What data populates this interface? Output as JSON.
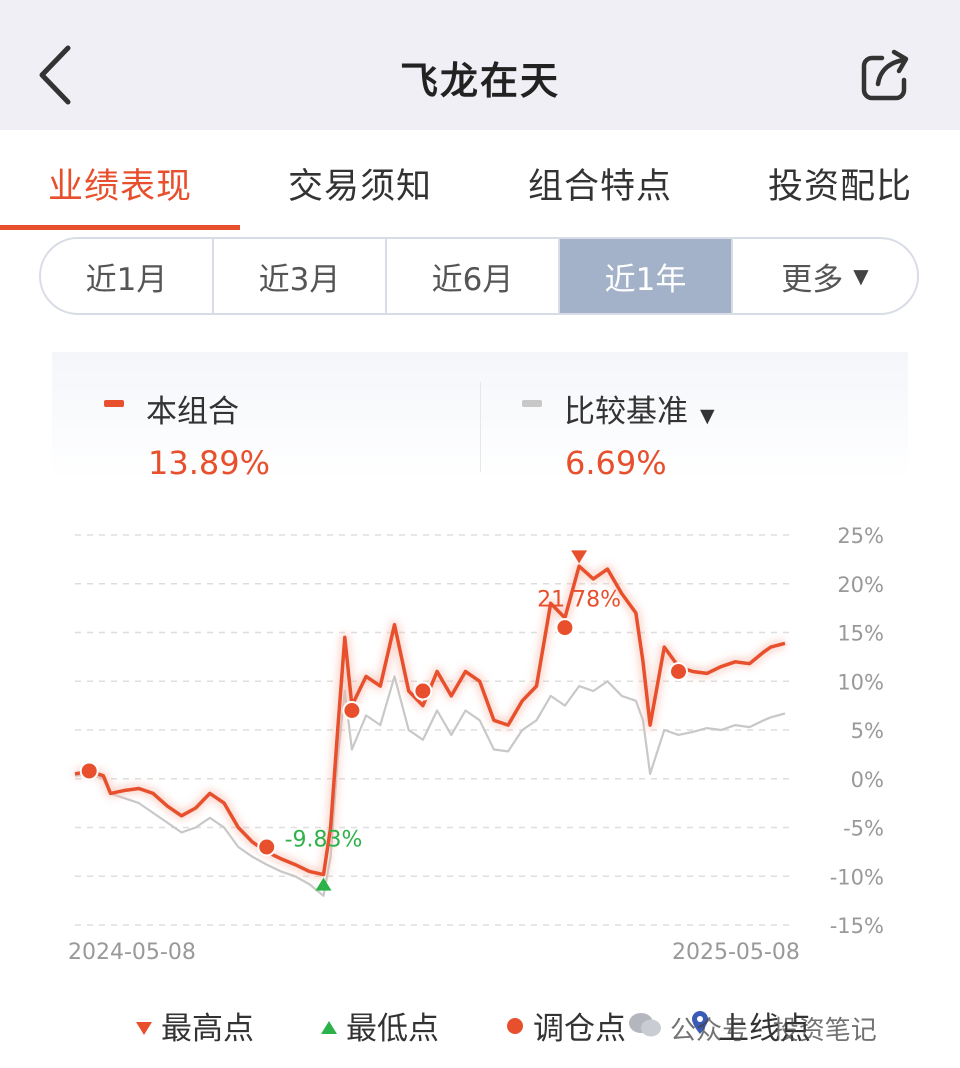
{
  "nav": {
    "title": "飞龙在天",
    "back_icon": "chevron-left-icon",
    "share_icon": "share-icon"
  },
  "tabs": [
    {
      "label": "业绩表现",
      "active": true
    },
    {
      "label": "交易须知",
      "active": false
    },
    {
      "label": "组合特点",
      "active": false
    },
    {
      "label": "投资配比",
      "active": false
    }
  ],
  "ranges": [
    {
      "label": "近1月",
      "active": false
    },
    {
      "label": "近3月",
      "active": false
    },
    {
      "label": "近6月",
      "active": false
    },
    {
      "label": "近1年",
      "active": true
    },
    {
      "label": "更多",
      "active": false,
      "caret": "▼"
    }
  ],
  "legend": {
    "portfolio": {
      "name": "本组合",
      "value": "13.89%",
      "color": "#e8502d"
    },
    "benchmark": {
      "name": "比较基准",
      "value": "6.69%",
      "color": "#c8c8c8",
      "caret": "▼"
    }
  },
  "chart_data": {
    "type": "line",
    "yticks": [
      "25%",
      "20%",
      "15%",
      "10%",
      "5%",
      "0%",
      "-5%",
      "-10%",
      "-15%"
    ],
    "ylim": [
      -15,
      25
    ],
    "x_start_label": "2024-05-08",
    "x_end_label": "2025-05-08",
    "series": [
      {
        "name": "本组合",
        "color": "#e8502d",
        "x": [
          0,
          2,
          4,
          5,
          7,
          9,
          11,
          13,
          15,
          17,
          19,
          21,
          23,
          25,
          27,
          29,
          31,
          33,
          35,
          36,
          37,
          38,
          39,
          41,
          43,
          45,
          47,
          49,
          51,
          53,
          55,
          57,
          59,
          61,
          63,
          65,
          67,
          69,
          71,
          73,
          75,
          77,
          79,
          80,
          81,
          83,
          85,
          87,
          89,
          91,
          93,
          95,
          97,
          98,
          100
        ],
        "values": [
          0.5,
          0.8,
          0.3,
          -1.5,
          -1.2,
          -1.0,
          -1.5,
          -2.8,
          -3.8,
          -3.0,
          -1.5,
          -2.5,
          -5.0,
          -6.5,
          -7.5,
          -8.2,
          -8.8,
          -9.5,
          -9.83,
          -5.0,
          5.0,
          14.5,
          7.5,
          10.5,
          9.5,
          15.8,
          9.0,
          7.5,
          11.0,
          8.5,
          11.0,
          10.0,
          6.0,
          5.5,
          8.0,
          9.5,
          18.0,
          16.5,
          21.8,
          20.5,
          21.5,
          19.0,
          17.0,
          12.0,
          5.5,
          13.5,
          11.5,
          11.0,
          10.8,
          11.5,
          12.0,
          11.8,
          13.0,
          13.5,
          13.89
        ]
      },
      {
        "name": "比较基准",
        "color": "#c8c8c8",
        "x": [
          0,
          2,
          4,
          5,
          7,
          9,
          11,
          13,
          15,
          17,
          19,
          21,
          23,
          25,
          27,
          29,
          31,
          33,
          35,
          36,
          37,
          38,
          39,
          41,
          43,
          45,
          47,
          49,
          51,
          53,
          55,
          57,
          59,
          61,
          63,
          65,
          67,
          69,
          71,
          73,
          75,
          77,
          79,
          80,
          81,
          83,
          85,
          87,
          89,
          91,
          93,
          95,
          97,
          98,
          100
        ],
        "values": [
          0.3,
          0.5,
          0.0,
          -1.5,
          -2.0,
          -2.5,
          -3.5,
          -4.5,
          -5.5,
          -5.0,
          -4.0,
          -5.0,
          -7.0,
          -8.0,
          -8.8,
          -9.5,
          -10.0,
          -10.8,
          -12.0,
          -8.0,
          2.0,
          9.0,
          3.0,
          6.5,
          5.5,
          10.5,
          5.0,
          4.0,
          7.0,
          4.5,
          7.0,
          6.0,
          3.0,
          2.8,
          5.0,
          6.0,
          8.5,
          7.5,
          9.5,
          9.0,
          10.0,
          8.5,
          8.0,
          6.0,
          0.5,
          5.0,
          4.5,
          4.8,
          5.2,
          5.0,
          5.5,
          5.3,
          6.0,
          6.3,
          6.69
        ]
      }
    ],
    "rebalance_points": [
      {
        "x": 2,
        "value": 0.8
      },
      {
        "x": 27,
        "value": -7.0
      },
      {
        "x": 39,
        "value": 7.0
      },
      {
        "x": 49,
        "value": 9.0
      },
      {
        "x": 69,
        "value": 15.5
      },
      {
        "x": 85,
        "value": 11.0
      }
    ],
    "max_point": {
      "x": 71,
      "value": 21.78,
      "label": "21.78%"
    },
    "min_point": {
      "x": 35,
      "value": -9.83,
      "label": "-9.83%"
    },
    "grid": true
  },
  "bottom_legend": [
    {
      "label": "最高点",
      "icon": "triangle-down-icon",
      "color": "#e8502d"
    },
    {
      "label": "最低点",
      "icon": "triangle-up-icon",
      "color": "#2db24a"
    },
    {
      "label": "调仓点",
      "icon": "dot-icon",
      "color": "#e8502d"
    },
    {
      "label": "上线点",
      "icon": "location-pin-icon",
      "color": "#3b5bb8"
    }
  ],
  "watermark": {
    "text": "公众号 · 投资笔记"
  }
}
